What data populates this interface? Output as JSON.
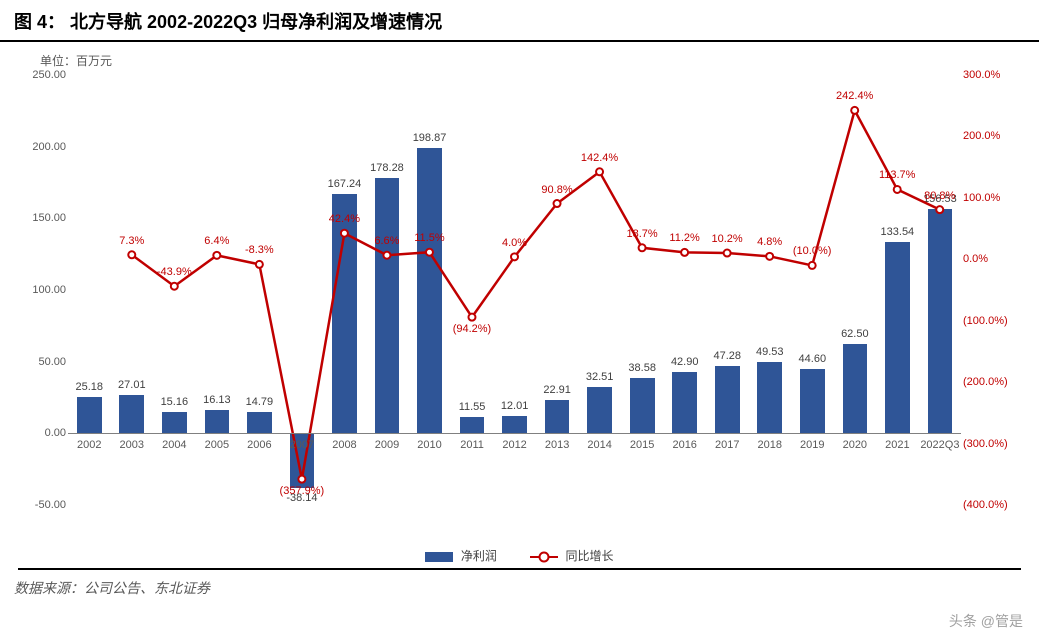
{
  "title_prefix": "图 4：",
  "title": "北方导航 2002-2022Q3 归母净利润及增速情况",
  "unit_label": "单位：百万元",
  "footer": "数据来源：公司公告、东北证券",
  "watermark": "头条 @管是",
  "legend": {
    "bar": "净利润",
    "line": "同比增长"
  },
  "chart": {
    "type": "bar+line",
    "background_color": "#ffffff",
    "bar_color": "#2f5597",
    "line_color": "#c00000",
    "marker_outline": "#c00000",
    "marker_fill": "#ffffff",
    "grid_color": "#bfbfbf",
    "label_fontsize": 11,
    "title_fontsize": 18,
    "bar_width": 0.58,
    "y_left": {
      "min": -50,
      "max": 250,
      "step": 50,
      "fmt": "fixed2"
    },
    "y_right": {
      "min": -400,
      "max": 300,
      "step": 100,
      "color": "#c00000",
      "suffix": "%",
      "paren_neg": true
    },
    "categories": [
      "2002",
      "2003",
      "2004",
      "2005",
      "2006",
      "2007",
      "2008",
      "2009",
      "2010",
      "2011",
      "2012",
      "2013",
      "2014",
      "2015",
      "2016",
      "2017",
      "2018",
      "2019",
      "2020",
      "2021",
      "2022Q3"
    ],
    "bar_values": [
      25.18,
      27.01,
      15.16,
      16.13,
      14.79,
      -38.14,
      167.24,
      178.28,
      198.87,
      11.55,
      12.01,
      22.91,
      32.51,
      38.58,
      42.9,
      47.28,
      49.53,
      44.6,
      62.5,
      133.54,
      156.53
    ],
    "line_values": [
      null,
      7.3,
      -43.9,
      6.4,
      -8.3,
      -357.9,
      42.4,
      6.6,
      11.5,
      -94.2,
      4.0,
      90.8,
      142.4,
      18.7,
      11.2,
      10.2,
      4.8,
      -10.0,
      242.4,
      113.7,
      80.8
    ],
    "line_labels": [
      "",
      "7.3%",
      "-43.9%",
      "6.4%",
      "-8.3%",
      "(357.9%)",
      "42.4%",
      "6.6%",
      "11.5%",
      "(94.2%)",
      "4.0%",
      "90.8%",
      "142.4%",
      "18.7%",
      "11.2%",
      "10.2%",
      "4.8%",
      "(10.0%)",
      "242.4%",
      "113.7%",
      "80.8%"
    ]
  }
}
